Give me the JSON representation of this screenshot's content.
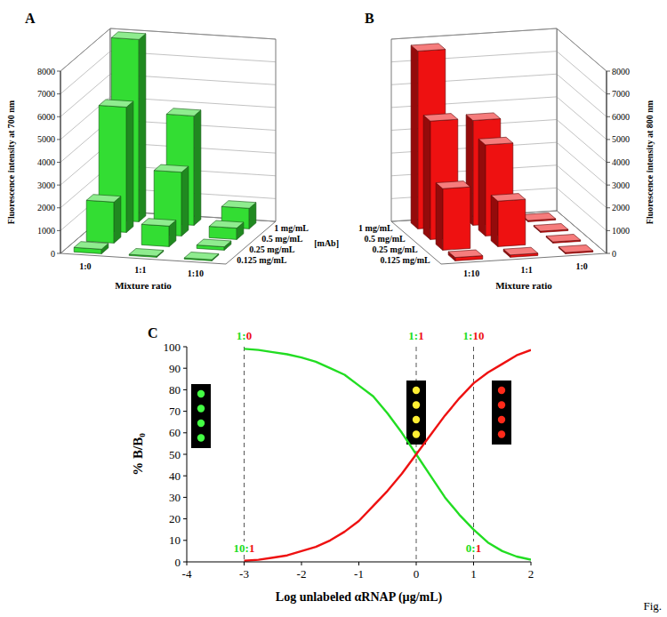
{
  "chart_data": [
    {
      "type": "bar3d",
      "panel": "A",
      "y_label": "Fluorescence intensity at 700 nm",
      "x_label": "Mixture ratio",
      "depth_label": "[mAb]",
      "categories": [
        "1:0",
        "1:1",
        "1:10"
      ],
      "series": [
        {
          "name": "1 mg/mL",
          "values": [
            8000,
            4800,
            900
          ]
        },
        {
          "name": "0.5 mg/mL",
          "values": [
            5500,
            2800,
            500
          ]
        },
        {
          "name": "0.25 mg/mL",
          "values": [
            1800,
            900,
            150
          ]
        },
        {
          "name": "0.125 mg/mL",
          "values": [
            200,
            50,
            50
          ]
        }
      ],
      "color": "#33dd33",
      "ylim": [
        0,
        8000
      ],
      "yticks": [
        0,
        1000,
        2000,
        3000,
        4000,
        5000,
        6000,
        7000,
        8000
      ],
      "grid": true
    },
    {
      "type": "bar3d",
      "panel": "B",
      "y_label": "Fluorescence intensity at 800 nm",
      "x_label": "Mixture ratio",
      "categories": [
        "1:0",
        "1:1",
        "1:10"
      ],
      "series": [
        {
          "name": "1 mg/mL",
          "values": [
            50,
            4600,
            7800
          ]
        },
        {
          "name": "0.5 mg/mL",
          "values": [
            50,
            4000,
            5200
          ]
        },
        {
          "name": "0.25 mg/mL",
          "values": [
            50,
            2000,
            2700
          ]
        },
        {
          "name": "0.125 mg/mL",
          "values": [
            50,
            100,
            150
          ]
        }
      ],
      "color": "#ee1111",
      "ylim": [
        0,
        8000
      ],
      "yticks": [
        0,
        1000,
        2000,
        3000,
        4000,
        5000,
        6000,
        7000,
        8000
      ],
      "grid": true
    },
    {
      "type": "line",
      "panel": "C",
      "x_label": "Log unlabeled αRNAP (µg/mL)",
      "y_label": "% B/B₀",
      "x": [
        -3,
        -2.75,
        -2.5,
        -2.25,
        -2,
        -1.75,
        -1.5,
        -1.25,
        -1,
        -0.75,
        -0.5,
        -0.25,
        0,
        0.25,
        0.5,
        0.75,
        1,
        1.25,
        1.5,
        1.75,
        2
      ],
      "series": [
        {
          "color": "#22dd22",
          "values": [
            99,
            98.5,
            97.5,
            96.5,
            95,
            93,
            90,
            87,
            82,
            77,
            69,
            60,
            50,
            40,
            30,
            22,
            15,
            9,
            5,
            2.5,
            1
          ]
        },
        {
          "color": "#ee1111",
          "values": [
            0.5,
            1,
            2,
            3,
            5,
            7,
            10,
            14,
            19,
            26,
            33,
            41,
            50,
            59,
            68,
            76,
            83,
            88,
            92,
            96,
            98.5
          ]
        }
      ],
      "xlim": [
        -4,
        2
      ],
      "xticks": [
        -4,
        -3,
        -2,
        -1,
        0,
        1,
        2
      ],
      "ylim": [
        0,
        100
      ],
      "yticks": [
        0,
        10,
        20,
        30,
        40,
        50,
        60,
        70,
        80,
        90,
        100
      ],
      "annotations": [
        {
          "x": -3,
          "label": "1:0",
          "label_bottom": "10:1"
        },
        {
          "x": 0,
          "label": "1:1"
        },
        {
          "x": 1,
          "label": "1:10",
          "label_bottom": "0:1"
        }
      ]
    }
  ],
  "footer": "Fig."
}
